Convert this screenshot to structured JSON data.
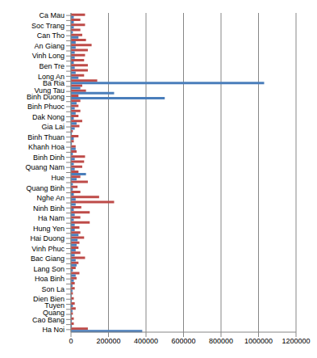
{
  "chart_data": {
    "type": "bar",
    "orientation": "horizontal",
    "grid": true,
    "categories": [
      "Ha Noi",
      null,
      "Cao Bang",
      null,
      "Tuyen Quang",
      null,
      "Dien Bien",
      null,
      "Son La",
      null,
      "Hoa Binh",
      null,
      "Lang Son",
      null,
      "Bac Giang",
      null,
      "Vinh Phuc",
      null,
      "Hai Duong",
      null,
      "Hung Yen",
      null,
      "Ha Nam",
      null,
      "Ninh Binh",
      null,
      "Nghe An",
      null,
      "Quang Binh",
      null,
      "Hue",
      null,
      "Quang Nam",
      null,
      "Binh Dinh",
      null,
      "Khanh Hoa",
      null,
      "Binh Thuan",
      null,
      "Gia Lai",
      null,
      "Dak Nong",
      null,
      "Binh Phuoc",
      null,
      "Binh Duong",
      null,
      "Ba Ria Vung Tau",
      null,
      "Long An",
      null,
      "Ben Tre",
      null,
      "Vinh Long",
      null,
      "An Giang",
      null,
      "Can Tho",
      null,
      "Soc Trang",
      null,
      "Ca Mau"
    ],
    "series": [
      {
        "color": "#4a7ebb",
        "values": [
          380000,
          5000,
          5000,
          3000,
          8000,
          10000,
          5000,
          3000,
          8000,
          8000,
          15000,
          25000,
          10000,
          30000,
          25000,
          20000,
          25000,
          30000,
          35000,
          40000,
          20000,
          20000,
          15000,
          20000,
          15000,
          25000,
          25000,
          15000,
          10000,
          10000,
          30000,
          80000,
          20000,
          15000,
          20000,
          10000,
          25000,
          5000,
          15000,
          5000,
          20000,
          30000,
          15000,
          25000,
          20000,
          30000,
          500000,
          230000,
          50000,
          1030000,
          40000,
          25000,
          20000,
          15000,
          20000,
          20000,
          25000,
          25000,
          40000,
          10000,
          15000,
          15000,
          15000
        ]
      },
      {
        "color": "#be4b48",
        "values": [
          90000,
          15000,
          15000,
          10000,
          25000,
          20000,
          15000,
          10000,
          20000,
          20000,
          30000,
          45000,
          25000,
          40000,
          75000,
          50000,
          40000,
          45000,
          70000,
          50000,
          45000,
          100000,
          50000,
          100000,
          55000,
          230000,
          150000,
          50000,
          35000,
          90000,
          50000,
          40000,
          60000,
          70000,
          75000,
          30000,
          25000,
          15000,
          40000,
          10000,
          45000,
          60000,
          40000,
          50000,
          40000,
          50000,
          40000,
          80000,
          60000,
          140000,
          70000,
          90000,
          90000,
          70000,
          75000,
          90000,
          110000,
          80000,
          60000,
          50000,
          75000,
          50000,
          75000
        ]
      }
    ],
    "xlim": [
      0,
      1200000
    ],
    "xticks": [
      0,
      200000,
      400000,
      600000,
      800000,
      1000000,
      1200000
    ]
  }
}
